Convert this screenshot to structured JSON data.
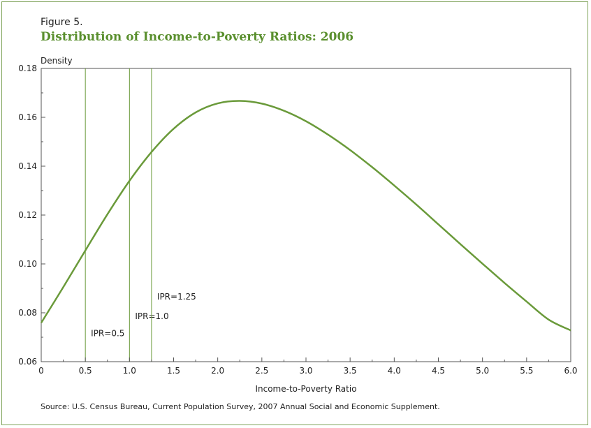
{
  "figure": {
    "number_label": "Figure 5.",
    "title": "Distribution of Income-to-Poverty Ratios: 2006",
    "source": "Source: U.S. Census Bureau, Current Population Survey, 2007 Annual Social and Economic Supplement."
  },
  "colors": {
    "accent": "#5a8f2e",
    "curve": "#6a9a3a",
    "frame": "#7fa35a"
  },
  "chart_data": {
    "type": "line",
    "title": "Distribution of Income-to-Poverty Ratios: 2006",
    "xlabel": "Income-to-Poverty Ratio",
    "ylabel": "Density",
    "xlim": [
      0,
      6
    ],
    "ylim": [
      0.06,
      0.18
    ],
    "x_ticks": [
      0,
      0.5,
      1.0,
      1.5,
      2.0,
      2.5,
      3.0,
      3.5,
      4.0,
      4.5,
      5.0,
      5.5,
      6.0
    ],
    "x_tick_labels": [
      "0",
      "0.5",
      "1.0",
      "1.5",
      "2.0",
      "2.5",
      "3.0",
      "3.5",
      "4.0",
      "4.5",
      "5.0",
      "5.5",
      "6.0"
    ],
    "y_ticks": [
      0.06,
      0.08,
      0.1,
      0.12,
      0.14,
      0.16,
      0.18
    ],
    "y_tick_labels": [
      "0.06",
      "0.08",
      "0.10",
      "0.12",
      "0.14",
      "0.16",
      "0.18"
    ],
    "grid": false,
    "series": [
      {
        "x": [
          0,
          0.25,
          0.5,
          0.75,
          1.0,
          1.25,
          1.5,
          1.75,
          2.0,
          2.25,
          2.5,
          2.75,
          3.0,
          3.25,
          3.5,
          3.75,
          4.0,
          4.25,
          4.5,
          4.75,
          5.0,
          5.25,
          5.5,
          5.75,
          6.0
        ],
        "y": [
          0.0759,
          0.0905,
          0.1055,
          0.1203,
          0.134,
          0.1458,
          0.1553,
          0.162,
          0.1657,
          0.1667,
          0.1656,
          0.1627,
          0.1584,
          0.1529,
          0.1466,
          0.1396,
          0.1321,
          0.1243,
          0.1162,
          0.1081,
          0.1001,
          0.0922,
          0.0846,
          0.0772,
          0.0728
        ]
      }
    ],
    "reference_lines": [
      {
        "x": 0.5,
        "label": "IPR=0.5",
        "label_y": 0.0705
      },
      {
        "x": 1.0,
        "label": "IPR=1.0",
        "label_y": 0.0775
      },
      {
        "x": 1.25,
        "label": "IPR=1.25",
        "label_y": 0.0855
      }
    ]
  }
}
